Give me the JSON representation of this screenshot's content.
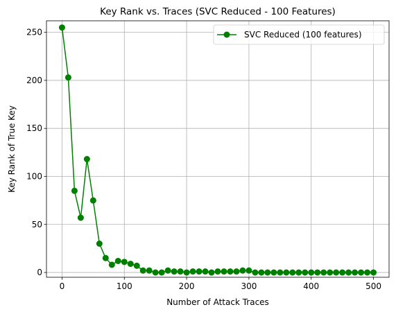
{
  "chart_data": {
    "type": "line",
    "title": "Key Rank vs. Traces (SVC Reduced - 100 Features)",
    "xlabel": "Number of Attack Traces",
    "ylabel": "Key Rank of True Key",
    "xlim": [
      -25,
      525
    ],
    "ylim": [
      -5,
      262
    ],
    "xticks": [
      0,
      100,
      200,
      300,
      400,
      500
    ],
    "yticks": [
      0,
      50,
      100,
      150,
      200,
      250
    ],
    "grid": true,
    "legend_position": "top-right",
    "color": "#008000",
    "series": [
      {
        "name": "SVC Reduced (100 features)",
        "marker": "circle",
        "x": [
          0,
          10,
          20,
          30,
          40,
          50,
          60,
          70,
          80,
          90,
          100,
          110,
          120,
          130,
          140,
          150,
          160,
          170,
          180,
          190,
          200,
          210,
          220,
          230,
          240,
          250,
          260,
          270,
          280,
          290,
          300,
          310,
          320,
          330,
          340,
          350,
          360,
          370,
          380,
          390,
          400,
          410,
          420,
          430,
          440,
          450,
          460,
          470,
          480,
          490,
          500
        ],
        "y": [
          255,
          203,
          85,
          57,
          118,
          75,
          30,
          15,
          8,
          12,
          11,
          9,
          7,
          2,
          2,
          0,
          0,
          2,
          1,
          1,
          0,
          1,
          1,
          1,
          0,
          1,
          1,
          1,
          1,
          2,
          2,
          0,
          0,
          0,
          0,
          0,
          0,
          0,
          0,
          0,
          0,
          0,
          0,
          0,
          0,
          0,
          0,
          0,
          0,
          0,
          0
        ]
      }
    ]
  }
}
